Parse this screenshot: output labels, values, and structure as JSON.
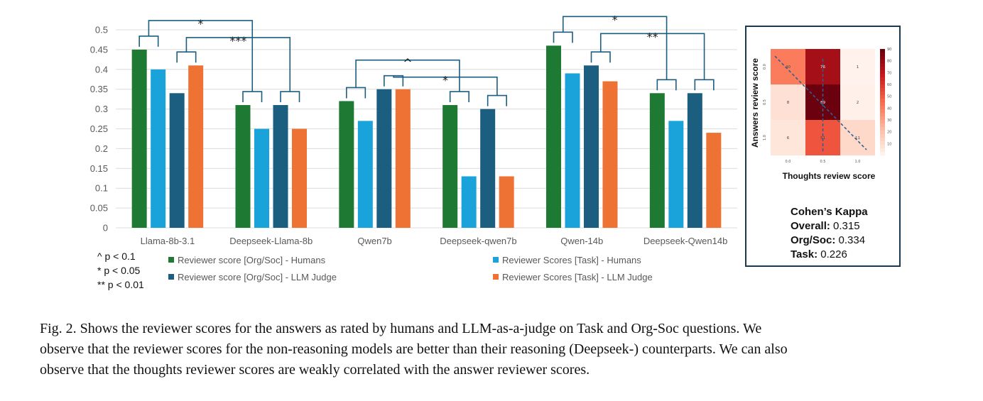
{
  "chart_data": [
    {
      "type": "bar",
      "categories": [
        "Llama-8b-3.1",
        "Deepseek-Llama-8b",
        "Qwen7b",
        "Deepseek-qwen7b",
        "Qwen-14b",
        "Deepseek-Qwen14b"
      ],
      "series": [
        {
          "name": "Reviewer score [Org/Soc] - Humans",
          "color": "#1e7a33",
          "values": [
            0.45,
            0.31,
            0.32,
            0.31,
            0.46,
            0.34
          ]
        },
        {
          "name": "Reviewer Scores [Task] - Humans",
          "color": "#1aa3db",
          "values": [
            0.4,
            0.25,
            0.27,
            0.13,
            0.39,
            0.27
          ]
        },
        {
          "name": "Reviewer score [Org/Soc] - LLM Judge",
          "color": "#1b5e80",
          "values": [
            0.34,
            0.31,
            0.35,
            0.3,
            0.41,
            0.34
          ]
        },
        {
          "name": "Reviewer Scores [Task] - LLM Judge",
          "color": "#ee7233",
          "values": [
            0.41,
            0.25,
            0.35,
            0.13,
            0.37,
            0.24
          ]
        }
      ],
      "ylim": [
        0,
        0.5
      ],
      "yticks": [
        "0",
        "0.05",
        "0.1",
        "0.15",
        "0.2",
        "0.25",
        "0.3",
        "0.35",
        "0.4",
        "0.45",
        "0.5"
      ],
      "grid": true,
      "legend_placement": "bottom",
      "significance": [
        {
          "from": 0,
          "to": 1,
          "label": "*"
        },
        {
          "from": 0,
          "to": 1,
          "label": "***"
        },
        {
          "from": 2,
          "to": 3,
          "label": "^"
        },
        {
          "from": 2,
          "to": 3,
          "label": "*"
        },
        {
          "from": 4,
          "to": 5,
          "label": "*"
        },
        {
          "from": 4,
          "to": 5,
          "label": "**"
        }
      ],
      "p_notes": [
        "^ p < 0.1",
        "* p < 0.05",
        "** p < 0.01"
      ]
    },
    {
      "type": "heatmap",
      "xlabel": "Thoughts review score",
      "ylabel": "Answers review score",
      "x_ticks": [
        "0.0",
        "0.5",
        "1.0"
      ],
      "y_ticks": [
        "0.0",
        "0.5",
        "1.0"
      ],
      "values": [
        [
          40,
          76,
          1
        ],
        [
          8,
          89,
          2
        ],
        [
          6,
          51,
          11
        ]
      ],
      "colorbar_ticks": [
        "10",
        "20",
        "30",
        "40",
        "50",
        "60",
        "70",
        "80",
        "90"
      ],
      "colorbar_range": [
        0,
        90
      ]
    }
  ],
  "kappa": {
    "title": "Cohen’s Kappa",
    "rows": [
      {
        "label": "Overall:",
        "value": "0.315"
      },
      {
        "label": "Org/Soc:",
        "value": "0.334"
      },
      {
        "label": "Task:",
        "value": "0.226"
      }
    ]
  },
  "caption": [
    "Fig. 2.  Shows the reviewer scores for the answers as rated by humans and LLM-as-a-judge on Task and Org-Soc questions. We",
    "observe that the reviewer scores for the non-reasoning models are better than their reasoning (Deepseek-) counterparts. We can also",
    "observe that the thoughts reviewer scores are weakly correlated with the answer reviewer scores."
  ]
}
